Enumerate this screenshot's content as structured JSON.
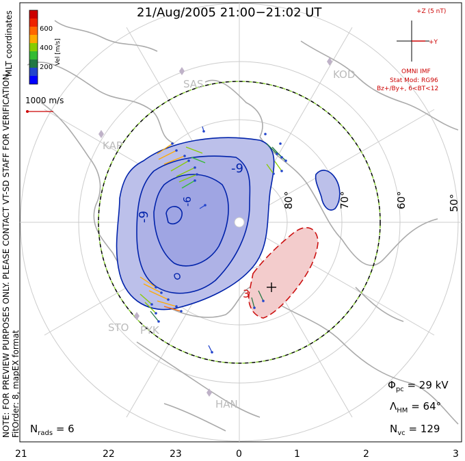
{
  "title": "21/Aug/2005 21:00−21:02 UT",
  "side_text": {
    "verification": "NOTE: FOR PREVIEW PURPOSES ONLY. PLEASE CONTACT VT-SD STAFF FOR VERIFICATION.",
    "fit_order": "FitOrder: 8, mapEX format",
    "mlt_coords": "MLT coordinates"
  },
  "colorbar": {
    "label": "Vel [m/s]",
    "ticks": [
      "600",
      "400",
      "200"
    ],
    "colors": [
      "#cc0000",
      "#ee2200",
      "#ff6600",
      "#ffaa00",
      "#88cc00",
      "#33bb33",
      "#227744",
      "#2244cc",
      "#0000ff"
    ]
  },
  "reference_vector": {
    "label": "1000 m/s",
    "color": "#cc0000"
  },
  "imf": {
    "z_label": "+Z (5 nT)",
    "y_label": "+Y",
    "source": "OMNI IMF",
    "stat_mod": "Stat Mod: RG96",
    "condition": "Bz+/By+, 6<BT<12",
    "color": "#cc0000"
  },
  "stations": [
    "SAS",
    "KOD",
    "KAP",
    "STO",
    "PYK",
    "HAN"
  ],
  "lat_labels": [
    "80°",
    "70°",
    "60°",
    "50°"
  ],
  "contour_labels": {
    "negative": [
      "-9",
      "-9",
      "-6"
    ],
    "positive": [
      "3"
    ]
  },
  "stats": {
    "phi_pc": "Φ",
    "phi_pc_sub": "pc",
    "phi_pc_value": "= 29 kV",
    "lambda_hm": "Λ",
    "lambda_hm_sub": "HM",
    "lambda_hm_value": "= 64°",
    "n_vc": "N",
    "n_vc_sub": "vc",
    "n_vc_value": "= 129",
    "n_rads": "N",
    "n_rads_sub": "rads",
    "n_rads_value": "= 6"
  },
  "mlt_ticks": [
    "21",
    "22",
    "23",
    "0",
    "1",
    "2",
    "3"
  ],
  "colors": {
    "negative_cell_fill": "#bcc0ea",
    "negative_inner_fill": "#9fa5e3",
    "negative_contour": "#0022aa",
    "positive_cell_fill": "#f3cccc",
    "positive_contour": "#cc1111",
    "grid": "#cccccc",
    "coast": "#aaaaaa",
    "hmb_boundary": "#000000",
    "hmb_dash": "#88cc33"
  }
}
